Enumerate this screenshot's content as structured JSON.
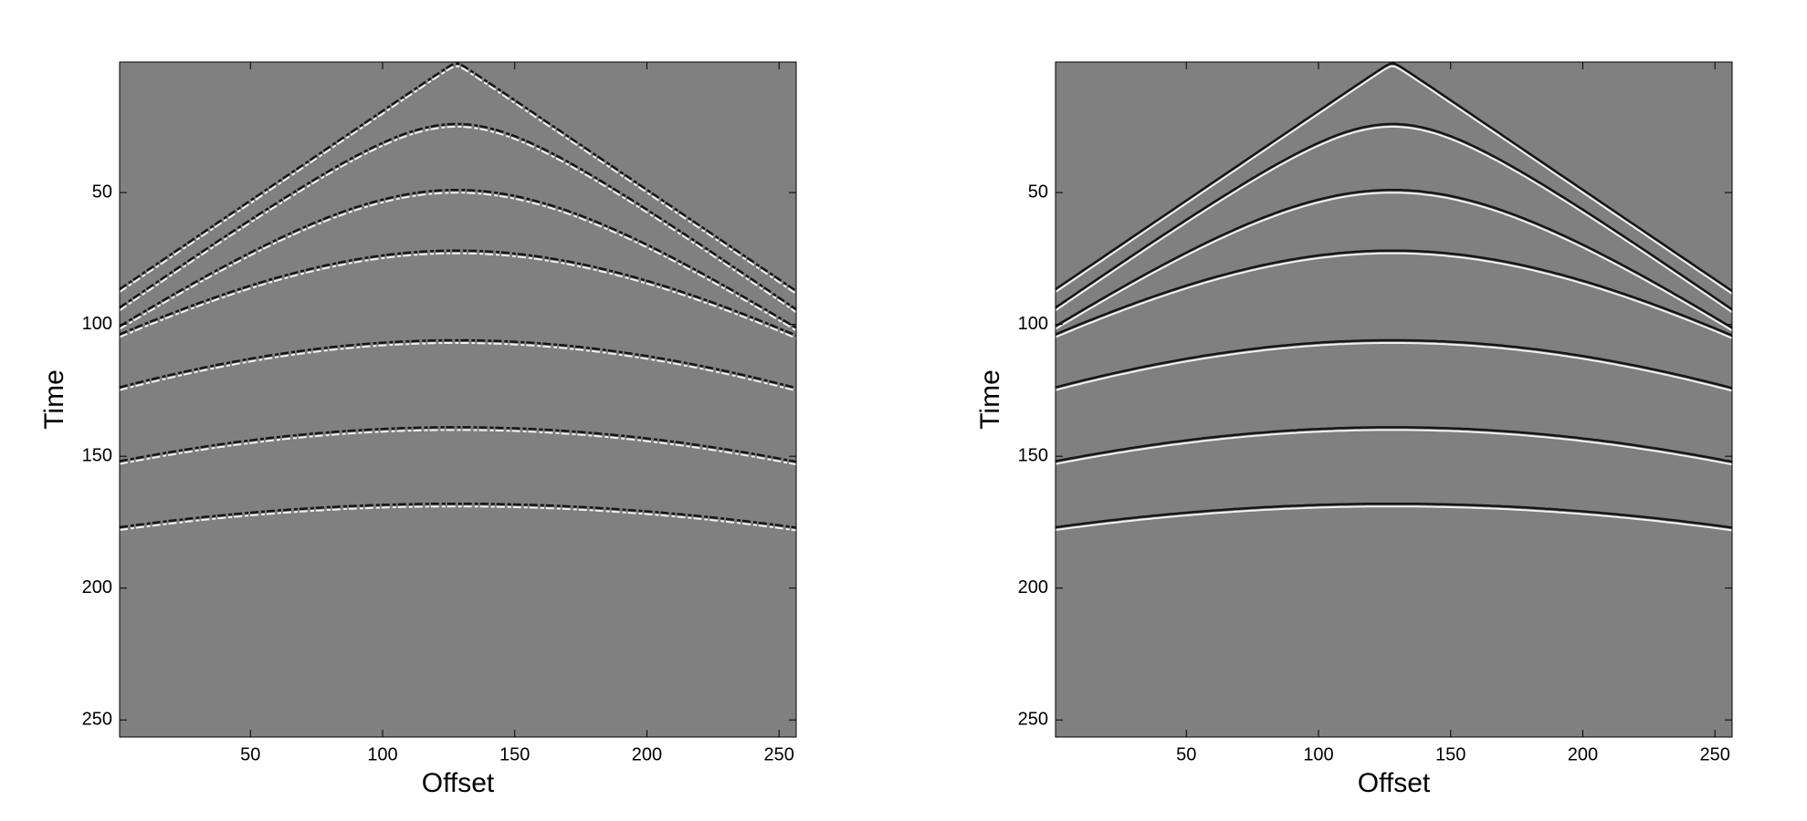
{
  "chart_data": [
    {
      "type": "image",
      "colormap": "gray",
      "xlabel": "Offset",
      "ylabel": "Time",
      "xlim": [
        0.5,
        256.5
      ],
      "xticks": [
        50,
        100,
        150,
        200,
        250
      ],
      "ylim": [
        256.5,
        0.5
      ],
      "yticks": [
        50,
        100,
        150,
        200,
        250
      ],
      "apex_offset": 128,
      "dashed": true,
      "events": [
        {
          "t0": 1,
          "t_edge": 87
        },
        {
          "t0": 24,
          "t_edge": 94
        },
        {
          "t0": 49,
          "t_edge": 101
        },
        {
          "t0": 72,
          "t_edge": 104
        },
        {
          "t0": 106,
          "t_edge": 124
        },
        {
          "t0": 139,
          "t_edge": 152
        },
        {
          "t0": 168,
          "t_edge": 177
        }
      ]
    },
    {
      "type": "image",
      "colormap": "gray",
      "xlabel": "Offset",
      "ylabel": "Time",
      "xlim": [
        0.5,
        256.5
      ],
      "xticks": [
        50,
        100,
        150,
        200,
        250
      ],
      "ylim": [
        256.5,
        0.5
      ],
      "yticks": [
        50,
        100,
        150,
        200,
        250
      ],
      "apex_offset": 128,
      "dashed": false,
      "events": [
        {
          "t0": 1,
          "t_edge": 87
        },
        {
          "t0": 24,
          "t_edge": 94
        },
        {
          "t0": 49,
          "t_edge": 101
        },
        {
          "t0": 72,
          "t_edge": 104
        },
        {
          "t0": 106,
          "t_edge": 124
        },
        {
          "t0": 139,
          "t_edge": 152
        },
        {
          "t0": 168,
          "t_edge": 177
        }
      ]
    }
  ]
}
